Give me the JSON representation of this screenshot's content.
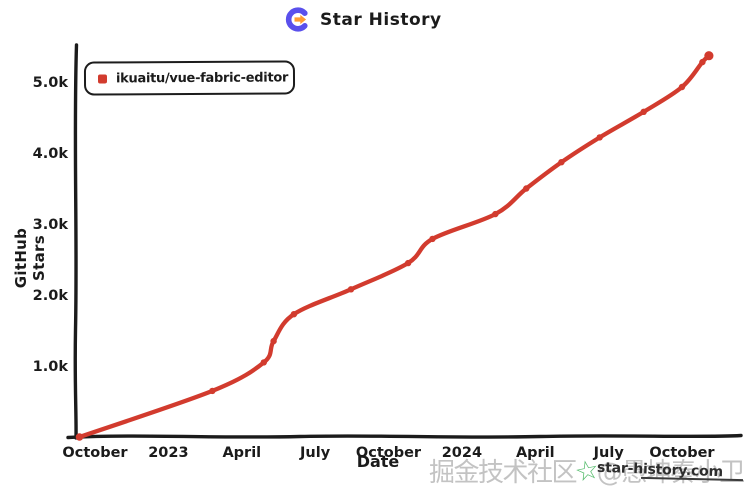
{
  "header": {
    "title": "Star History"
  },
  "legend": {
    "label": "ikuaitu/vue-fabric-editor"
  },
  "axis_titles": {
    "x": "Date",
    "y": "GitHub Stars"
  },
  "colors": {
    "series": "#d23b2e",
    "axis": "#1b1b1b",
    "logo_purple": "#5a50ec",
    "logo_orange": "#ff9c33",
    "watermark_gray": "#b9b9b9",
    "watermark_green": "#3cb256"
  },
  "watermark": {
    "cn_prefix": "掘金技术社区",
    "star_glyph": "☆",
    "cn_suffix": "@愚坤秦小卫",
    "site": "star-history.com"
  },
  "chart_data": {
    "type": "line",
    "title": "Star History",
    "xlabel": "Date",
    "ylabel": "GitHub Stars",
    "grid": false,
    "legend_position": "top-left",
    "x_range": [
      "2022-09-10",
      "2024-11-10"
    ],
    "ylim": [
      0,
      5500
    ],
    "x_ticks": [
      {
        "label": "October",
        "months": 0
      },
      {
        "label": "2023",
        "months": 3
      },
      {
        "label": "April",
        "months": 6
      },
      {
        "label": "July",
        "months": 9
      },
      {
        "label": "October",
        "months": 12
      },
      {
        "label": "2024",
        "months": 15
      },
      {
        "label": "April",
        "months": 18
      },
      {
        "label": "July",
        "months": 21
      },
      {
        "label": "October",
        "months": 24
      }
    ],
    "y_ticks": [
      {
        "label": "1.0k",
        "value": 1000
      },
      {
        "label": "2.0k",
        "value": 2000
      },
      {
        "label": "3.0k",
        "value": 3000
      },
      {
        "label": "4.0k",
        "value": 4000
      },
      {
        "label": "5.0k",
        "value": 5000
      }
    ],
    "series": [
      {
        "name": "ikuaitu/vue-fabric-editor",
        "color": "#d23b2e",
        "points": [
          [
            "2022-09-12",
            0
          ],
          [
            "2023-02-25",
            650
          ],
          [
            "2023-04-28",
            1050
          ],
          [
            "2023-05-10",
            1350
          ],
          [
            "2023-06-05",
            1730
          ],
          [
            "2023-08-15",
            2080
          ],
          [
            "2023-10-25",
            2450
          ],
          [
            "2023-11-25",
            2790
          ],
          [
            "2024-02-12",
            3140
          ],
          [
            "2024-03-20",
            3500
          ],
          [
            "2024-05-03",
            3870
          ],
          [
            "2024-06-20",
            4220
          ],
          [
            "2024-08-14",
            4580
          ],
          [
            "2024-10-01",
            4930
          ],
          [
            "2024-10-26",
            5280
          ],
          [
            "2024-11-04",
            5370
          ]
        ]
      }
    ]
  }
}
